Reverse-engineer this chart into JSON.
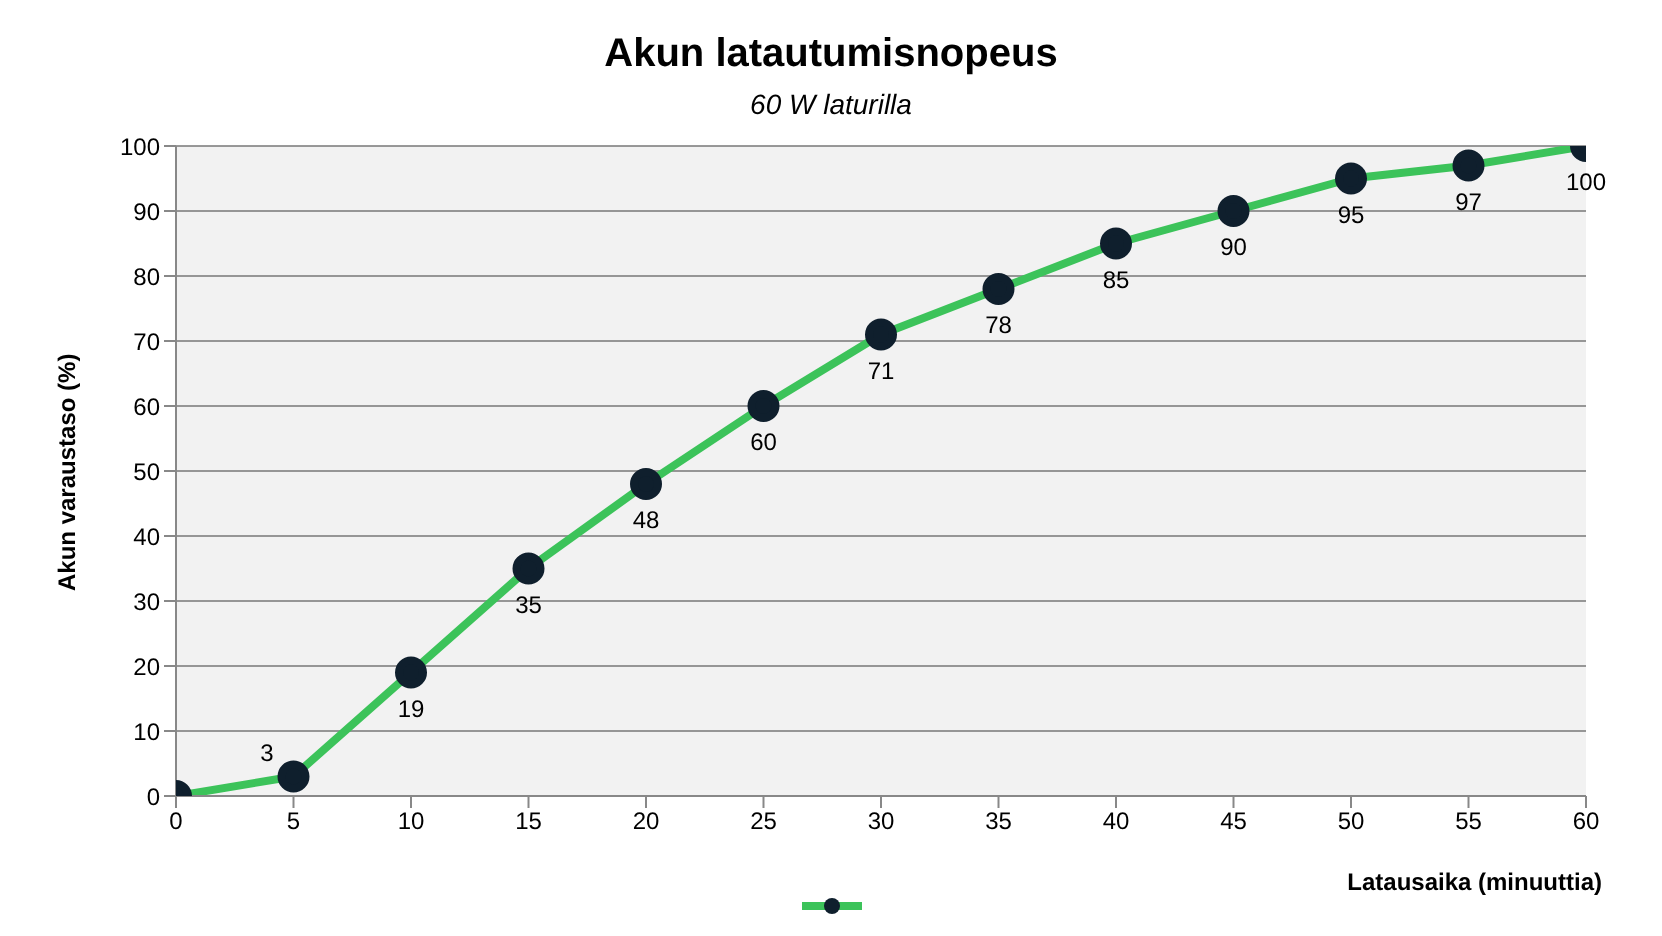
{
  "chart_data": {
    "type": "line",
    "title": "Akun latautumisnopeus",
    "subtitle": "60 W laturilla",
    "xlabel": "Latausaika (minuuttia)",
    "ylabel": "Akun varaustaso (%)",
    "x": [
      0,
      5,
      10,
      15,
      20,
      25,
      30,
      35,
      40,
      45,
      50,
      55,
      60
    ],
    "series": [
      {
        "color": "#3cc35a",
        "values": [
          0,
          3,
          19,
          35,
          48,
          60,
          71,
          78,
          85,
          90,
          95,
          97,
          100
        ],
        "value_labels": [
          null,
          "3",
          "19",
          "35",
          "48",
          "60",
          "71",
          "78",
          "85",
          "90",
          "95",
          "97",
          "100"
        ]
      }
    ],
    "xlim": [
      0,
      60
    ],
    "xticks": [
      0,
      5,
      10,
      15,
      20,
      25,
      30,
      35,
      40,
      45,
      50,
      55,
      60
    ],
    "ylim": [
      0,
      100
    ],
    "yticks": [
      0,
      10,
      20,
      30,
      40,
      50,
      60,
      70,
      80,
      90,
      100
    ],
    "grid": "y",
    "marker": "circle",
    "line_style": "solid"
  }
}
